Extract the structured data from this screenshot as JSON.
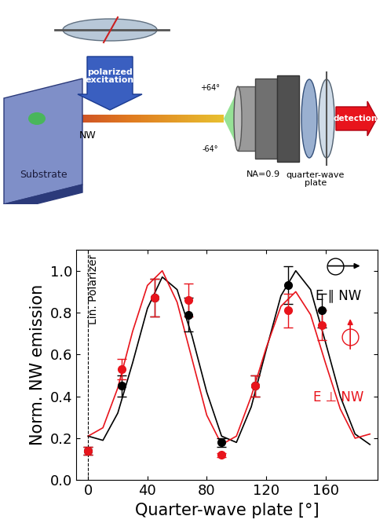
{
  "chart_data": {
    "type": "scatter",
    "xlabel": "Quarter-wave plate [°]",
    "ylabel": "Norm. NW emission",
    "xlim": [
      -8,
      195
    ],
    "xticks": [
      0,
      40,
      80,
      120,
      160
    ],
    "ylim": [
      0,
      1.1
    ],
    "yticks": [
      {
        "value": 0.0,
        "label": "0.0"
      },
      {
        "value": 0.2,
        "label": "0.2"
      },
      {
        "value": 0.4,
        "label": "0.4"
      },
      {
        "value": 0.6,
        "label": "0.6"
      },
      {
        "value": 0.8,
        "label": "0.8"
      },
      {
        "value": 1.0,
        "label": "1.0"
      }
    ],
    "grid": false,
    "polarizer_x": 0,
    "polarizer_label": "Lin. Polarizer",
    "series": [
      {
        "name": "E ∥ NW",
        "color": "#000000",
        "marker": "o",
        "x": [
          0,
          22.5,
          45,
          67.5,
          90,
          112.5,
          135,
          157.5
        ],
        "values": [
          0.14,
          0.45,
          0.87,
          0.79,
          0.18,
          0.45,
          0.93,
          0.81
        ],
        "errors": [
          0.02,
          0.05,
          0.09,
          0.08,
          0.02,
          0.05,
          0.09,
          0.08
        ],
        "fit": {
          "x": [
            0,
            10,
            20,
            30,
            40,
            50,
            60,
            70,
            80,
            90,
            100,
            110,
            120,
            130,
            140,
            150,
            160,
            170,
            180,
            190
          ],
          "values": [
            0.21,
            0.19,
            0.32,
            0.56,
            0.82,
            0.97,
            0.91,
            0.69,
            0.42,
            0.21,
            0.18,
            0.35,
            0.62,
            0.88,
            1.0,
            0.91,
            0.66,
            0.4,
            0.22,
            0.17
          ]
        }
      },
      {
        "name": "E ⊥ NW",
        "color": "#e8141c",
        "marker": "o",
        "x": [
          0,
          22.5,
          45,
          67.5,
          90,
          112.5,
          135,
          157.5
        ],
        "values": [
          0.14,
          0.53,
          0.87,
          0.86,
          0.12,
          0.45,
          0.81,
          0.74
        ],
        "errors": [
          0.02,
          0.05,
          0.09,
          0.08,
          0.01,
          0.05,
          0.08,
          0.07
        ],
        "fit": {
          "x": [
            0,
            10,
            20,
            30,
            40,
            50,
            60,
            70,
            80,
            90,
            100,
            110,
            120,
            130,
            140,
            150,
            160,
            170,
            180,
            190
          ],
          "values": [
            0.21,
            0.25,
            0.44,
            0.71,
            0.93,
            1.0,
            0.85,
            0.58,
            0.31,
            0.17,
            0.21,
            0.4,
            0.63,
            0.83,
            0.9,
            0.79,
            0.56,
            0.34,
            0.2,
            0.22
          ]
        }
      }
    ]
  },
  "schematic": {
    "texts": {
      "excitation": "polarized\nexcitation",
      "nanowire": "NW",
      "substrate": "Substrate",
      "angle_top": "+64°",
      "angle_bottom": "-64°",
      "aperture": "NA=0.9",
      "waveplate": "quarter-wave\nplate",
      "detection": "detection"
    }
  }
}
